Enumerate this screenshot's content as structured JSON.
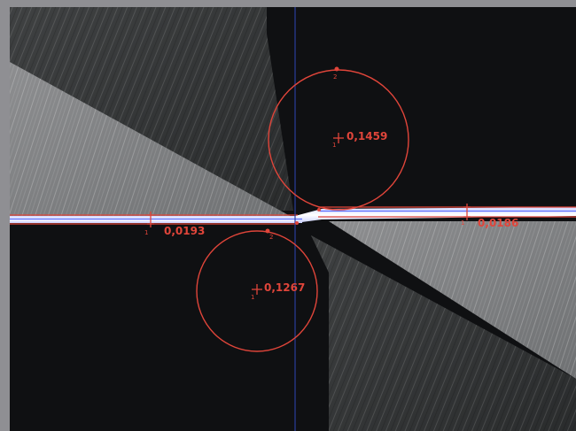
{
  "measurements": {
    "circle_upper": {
      "value": "0,1459",
      "center_point": "1",
      "edge_point": "2"
    },
    "circle_lower": {
      "value": "0,1267",
      "center_point": "1",
      "edge_point": "2"
    },
    "line_left": {
      "value": "0,0193",
      "point": "1"
    },
    "line_right": {
      "value": "0,0186",
      "point": "1"
    }
  },
  "colors": {
    "overlay": "#e0453a",
    "crosshair": "#2a3e9c",
    "background": "#0f1012",
    "frame": "#8f8f93"
  }
}
